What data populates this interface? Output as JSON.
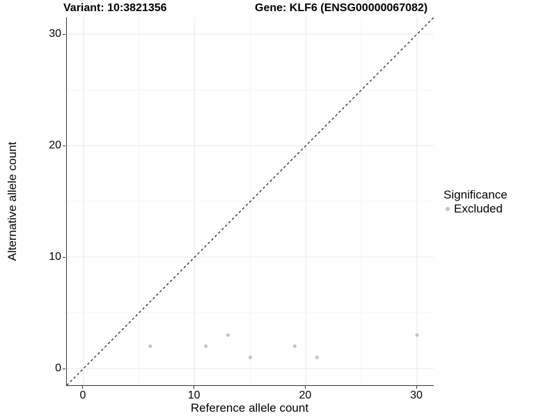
{
  "header": {
    "variant_title": "Variant: 10:3821356",
    "gene_title": "Gene: KLF6 (ENSG00000067082)"
  },
  "legend": {
    "title": "Significance",
    "items": [
      {
        "label": "Excluded",
        "color": "#c2c2c2"
      }
    ]
  },
  "chart_data": {
    "type": "scatter",
    "title": "Variant: 10:3821356    Gene: KLF6 (ENSG00000067082)",
    "xlabel": "Reference allele count",
    "ylabel": "Alternative allele count",
    "xlim": [
      -1.5,
      31.5
    ],
    "ylim": [
      -1.5,
      31.5
    ],
    "x_ticks": [
      0,
      10,
      20,
      30
    ],
    "y_ticks": [
      0,
      10,
      20,
      30
    ],
    "x_minor_ticks": [
      5,
      15,
      25
    ],
    "y_minor_ticks": [
      5,
      15,
      25
    ],
    "grid": true,
    "legend_position": "right",
    "series": [
      {
        "name": "Excluded",
        "color": "#c2c2c2",
        "points": [
          [
            6,
            2
          ],
          [
            11,
            2
          ],
          [
            13,
            3
          ],
          [
            15,
            1
          ],
          [
            19,
            2
          ],
          [
            21,
            1
          ],
          [
            30,
            3
          ]
        ]
      }
    ],
    "reference_line": {
      "kind": "identity y=x",
      "style": "dashed",
      "color": "#111111"
    }
  },
  "colors": {
    "background": "#ffffff",
    "axis_line": "#333333",
    "major_grid": "#e8e8e8",
    "minor_grid": "#f4f4f4",
    "point": "#c2c2c2",
    "text": "#000000"
  }
}
